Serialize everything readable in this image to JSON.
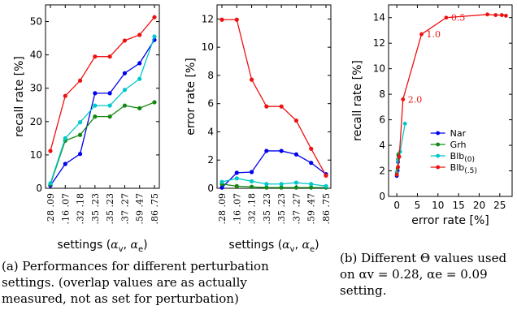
{
  "captions": {
    "a": "(a) Performances for different perturbation settings. (overlap values are as actually measured, not as set for perturbation)",
    "b": "(b) Different Θ values used on αv = 0.28, αe = 0.09 setting."
  },
  "colors": {
    "Nar": "#0000ee",
    "Grh": "#118811",
    "Blb0": "#00c8c8",
    "Blb5": "#ee1111"
  },
  "chart_data": [
    {
      "type": "line",
      "id": "recall",
      "categories": [
        ".28 .09",
        ".16 .07",
        ".32 .18",
        ".35 .23",
        ".35 .23",
        ".37 .27",
        ".59 .47",
        ".86 .75"
      ],
      "xlabel": "settings (αv, αe)",
      "ylabel": "recall rate [%]",
      "ylim": [
        0,
        55
      ],
      "yticks": [
        "0",
        "10",
        "20",
        "30",
        "40",
        "50"
      ],
      "series": [
        {
          "name": "Nar",
          "values": [
            0.8,
            7.3,
            10.3,
            28.5,
            28.5,
            34.5,
            37.5,
            44.5
          ]
        },
        {
          "name": "Grh",
          "values": [
            1.2,
            14.3,
            16.0,
            21.5,
            21.5,
            24.8,
            24.0,
            25.8
          ]
        },
        {
          "name": "Blb(0)",
          "values": [
            1.5,
            15.0,
            19.8,
            24.8,
            24.8,
            29.5,
            32.8,
            45.5
          ]
        },
        {
          "name": "Blb(.5)",
          "values": [
            11.2,
            27.7,
            32.3,
            39.5,
            39.5,
            44.3,
            46.0,
            51.3
          ]
        }
      ]
    },
    {
      "type": "line",
      "id": "error",
      "categories": [
        ".28 .09",
        ".16 .07",
        ".32 .18",
        ".35 .23",
        ".35 .23",
        ".37 .27",
        ".59 .47",
        ".86 .75"
      ],
      "xlabel": "settings (αv, αe)",
      "ylabel": "error rate [%]",
      "ylim": [
        0,
        13
      ],
      "yticks": [
        "0",
        "2",
        "4",
        "6",
        "8",
        "10",
        "12"
      ],
      "series": [
        {
          "name": "Nar",
          "values": [
            0.05,
            1.1,
            1.15,
            2.65,
            2.65,
            2.4,
            1.8,
            1.0
          ]
        },
        {
          "name": "Grh",
          "values": [
            0.3,
            0.15,
            0.1,
            0.05,
            0.05,
            0.05,
            0.05,
            0.05
          ]
        },
        {
          "name": "Blb(0)",
          "values": [
            0.45,
            0.7,
            0.5,
            0.3,
            0.3,
            0.4,
            0.3,
            0.15
          ]
        },
        {
          "name": "Blb(.5)",
          "values": [
            11.95,
            11.95,
            7.7,
            5.8,
            5.8,
            4.8,
            2.8,
            0.9
          ]
        }
      ]
    },
    {
      "type": "line",
      "id": "theta",
      "xlabel": "error rate [%]",
      "ylabel": "recall rate [%]",
      "xlim": [
        -2,
        28
      ],
      "ylim": [
        0,
        15
      ],
      "xticks": [
        "0",
        "5",
        "10",
        "15",
        "20",
        "25"
      ],
      "yticks": [
        "0",
        "2",
        "4",
        "6",
        "8",
        "10",
        "12",
        "14"
      ],
      "legend": "bottom-right",
      "series": [
        {
          "name": "Nar",
          "points": [
            [
              0.0,
              1.6
            ],
            [
              0.2,
              2.0
            ],
            [
              0.3,
              2.7
            ],
            [
              0.4,
              3.2
            ]
          ]
        },
        {
          "name": "Grh",
          "points": [
            [
              0.0,
              1.8
            ],
            [
              0.2,
              2.2
            ],
            [
              0.3,
              2.9
            ],
            [
              0.4,
              3.3
            ]
          ]
        },
        {
          "name": "Blb(0)",
          "points": [
            [
              0.0,
              1.9
            ],
            [
              0.3,
              2.8
            ],
            [
              0.8,
              3.5
            ],
            [
              2.0,
              5.7
            ]
          ]
        },
        {
          "name": "Blb(.5)",
          "points": [
            [
              0.0,
              1.7
            ],
            [
              0.3,
              2.3
            ],
            [
              0.6,
              3.1
            ],
            [
              1.5,
              7.6
            ],
            [
              6.0,
              12.7
            ],
            [
              12.0,
              14.0
            ],
            [
              22.0,
              14.25
            ],
            [
              24.0,
              14.2
            ],
            [
              25.5,
              14.2
            ],
            [
              26.5,
              14.15
            ]
          ]
        }
      ],
      "annotations": [
        {
          "text": "2.0",
          "x": 1.5,
          "y": 7.6
        },
        {
          "text": "1.0",
          "x": 6.0,
          "y": 12.7
        },
        {
          "text": "0.5",
          "x": 12.0,
          "y": 14.0
        }
      ]
    }
  ]
}
